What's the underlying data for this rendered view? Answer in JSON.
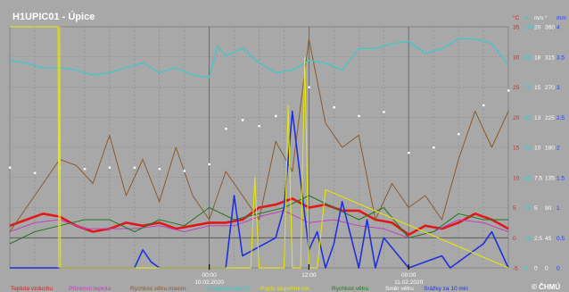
{
  "chart_data": {
    "type": "line",
    "title": "H1UPIC01 - Úpice",
    "credit": "© ČHMÚ",
    "x_ticks": [
      {
        "time": "00:00",
        "date": "10.02.2020",
        "hour": 24
      },
      {
        "time": "12:00",
        "date": "",
        "hour": 36
      },
      {
        "time": "00:00",
        "date": "11.02.2020",
        "hour": 48
      }
    ],
    "x_range_hours": [
      0,
      60
    ],
    "axes": [
      {
        "unit": "°C",
        "ticks": [
          "35",
          "30",
          "25",
          "20",
          "15",
          "10",
          "5",
          "0",
          "-5"
        ],
        "color": "#e02020",
        "range": [
          -5,
          35
        ]
      },
      {
        "unit": "%",
        "ticks": [
          "100",
          "88",
          "75",
          "63",
          "50",
          "38",
          "25",
          "13",
          "0"
        ],
        "color": "#40c8c8",
        "range": [
          0,
          100
        ]
      },
      {
        "unit": "m/s",
        "ticks": [
          "20",
          "18",
          "15",
          "13",
          "10",
          "7.5",
          "5",
          "2.5",
          "0"
        ],
        "color": "#ffffff",
        "range": [
          0,
          20
        ]
      },
      {
        "unit": "°",
        "ticks": [
          "360",
          "315",
          "270",
          "225",
          "180",
          "135",
          "90",
          "45",
          "0"
        ],
        "color": "#ffffff",
        "range": [
          0,
          360
        ]
      },
      {
        "unit": "mm",
        "ticks": [
          "4",
          "3.5",
          "3",
          "2.5",
          "2",
          "1.5",
          "1",
          "0.5",
          "0"
        ],
        "color": "#2040ff",
        "range": [
          0,
          4
        ]
      }
    ],
    "legend": [
      {
        "label": "Teplota vzduchu",
        "color": "#e01818"
      },
      {
        "label": "Přízemní teplota",
        "color": "#c040c0"
      },
      {
        "label": "Rychlost větru maxim.",
        "color": "#8a5a2a"
      },
      {
        "label": "Relativní vlhkost",
        "color": "#40c8c8"
      },
      {
        "label": "Popis stupeňmi cel.",
        "color": "#e8e800"
      },
      {
        "label": "Rychlost větru",
        "color": "#207820"
      },
      {
        "label": "Směr větru",
        "color": "#ffffff"
      },
      {
        "label": "Srážky za 10 min",
        "color": "#2030e0"
      }
    ],
    "series": [
      {
        "name": "Teplota vzduchu",
        "axis": "°C",
        "color": "#e01818",
        "x": [
          0,
          2,
          4,
          6,
          8,
          10,
          12,
          14,
          16,
          18,
          20,
          22,
          24,
          26,
          28,
          30,
          32,
          34,
          36,
          38,
          40,
          42,
          44,
          46,
          48,
          50,
          52,
          54,
          56,
          58,
          60
        ],
        "values": [
          2,
          3,
          4,
          3.5,
          2,
          1,
          1.5,
          2.5,
          2,
          2.5,
          1.5,
          2,
          2.5,
          2.5,
          3,
          5,
          5.5,
          6.5,
          5,
          5.5,
          4.5,
          4.5,
          3,
          2.5,
          0.5,
          2,
          1.5,
          2.5,
          4,
          3,
          1.5
        ]
      },
      {
        "name": "Přízemní teplota",
        "axis": "°C",
        "color": "#c040c0",
        "x": [
          0,
          3,
          6,
          9,
          12,
          15,
          18,
          21,
          24,
          27,
          30,
          33,
          36,
          39,
          42,
          45,
          48,
          51,
          54,
          57,
          60
        ],
        "values": [
          1,
          2.5,
          3,
          1.5,
          1.5,
          1.5,
          2,
          1,
          2,
          2,
          3.5,
          4.5,
          2.5,
          3,
          2,
          1.5,
          0,
          1,
          3,
          2.5,
          1
        ]
      },
      {
        "name": "Rychlost větru maxim.",
        "axis": "m/s",
        "color": "#8a5a2a",
        "x": [
          0,
          2,
          4,
          6,
          8,
          10,
          12,
          14,
          16,
          18,
          20,
          22,
          24,
          26,
          28,
          30,
          32,
          34,
          36,
          38,
          40,
          42,
          44,
          46,
          48,
          50,
          52,
          54,
          56,
          58,
          60
        ],
        "values": [
          3,
          5,
          7,
          9,
          8.5,
          7,
          11,
          6,
          9,
          5.5,
          10,
          6,
          4,
          8,
          6,
          4,
          10.5,
          8,
          19,
          12,
          10,
          11,
          4,
          7,
          5,
          6,
          4,
          9,
          13,
          10,
          13
        ]
      },
      {
        "name": "Relativní vlhkost",
        "axis": "%",
        "color": "#40c8c8",
        "x": [
          0,
          2,
          4,
          6,
          8,
          10,
          12,
          14,
          16,
          18,
          20,
          22,
          24,
          25,
          26,
          28,
          30,
          32,
          34,
          36,
          38,
          40,
          42,
          44,
          46,
          48,
          50,
          52,
          54,
          56,
          58,
          60
        ],
        "values": [
          86,
          85,
          83,
          83,
          82,
          80,
          81,
          83,
          85,
          81,
          83,
          80,
          79,
          92,
          88,
          91,
          85,
          81,
          82,
          86,
          85,
          82,
          91,
          91,
          93,
          94,
          89,
          91,
          95,
          95,
          93,
          84
        ]
      },
      {
        "name": "Rychlost větru",
        "axis": "m/s",
        "color": "#207820",
        "x": [
          0,
          3,
          6,
          9,
          12,
          15,
          18,
          21,
          24,
          27,
          30,
          33,
          36,
          39,
          42,
          45,
          48,
          51,
          54,
          57,
          60
        ],
        "values": [
          2,
          3,
          3.5,
          4,
          4,
          3,
          4,
          3.5,
          5,
          4,
          4.5,
          5,
          6,
          5,
          4,
          5,
          2.5,
          3,
          4.5,
          4,
          4
        ]
      },
      {
        "name": "Směr větru",
        "axis": "°",
        "color": "#ffffff",
        "x": [
          0,
          3,
          6,
          9,
          12,
          15,
          18,
          21,
          24,
          26,
          28,
          30,
          32,
          34,
          36,
          39,
          42,
          45,
          48,
          51,
          54,
          57,
          60
        ],
        "values": [
          150,
          142,
          150,
          148,
          150,
          150,
          148,
          145,
          155,
          208,
          221,
          212,
          227,
          230,
          270,
          240,
          227,
          233,
          172,
          180,
          200,
          243,
          265
        ]
      },
      {
        "name": "Srážky za 10 min",
        "axis": "mm",
        "color": "#2030e0",
        "x": [
          0,
          15,
          16,
          17,
          18,
          26,
          27,
          28,
          32,
          33,
          34,
          36,
          37,
          38,
          39,
          40,
          42,
          43,
          44,
          45,
          48,
          52,
          53,
          57,
          58,
          60
        ],
        "values": [
          0,
          0,
          0.3,
          0.1,
          0,
          0,
          1.2,
          0.2,
          0.5,
          1.0,
          2.6,
          0.3,
          0.6,
          0,
          0.4,
          1.1,
          0,
          0.8,
          0,
          0.5,
          0,
          0.2,
          0,
          0.4,
          0.6,
          0
        ]
      },
      {
        "name": "Popis stupeňmi cel.",
        "axis": "°C",
        "color": "#e8e800",
        "x": [
          0,
          5.8,
          5.9,
          6.0,
          6.1,
          29,
          29.5,
          30,
          33,
          33.5,
          34,
          35,
          35.5,
          36,
          37,
          38,
          60
        ],
        "values": [
          35,
          35,
          -5,
          35,
          -5,
          -5,
          10,
          -5,
          -5,
          22,
          -5,
          -5,
          30,
          -5,
          -5,
          8,
          -5
        ]
      }
    ]
  }
}
